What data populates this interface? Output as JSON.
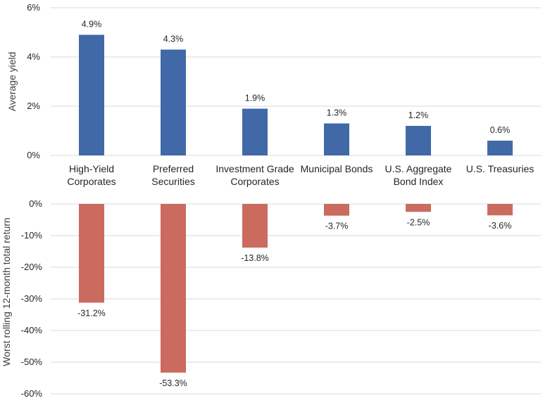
{
  "chart_data": [
    {
      "type": "bar",
      "ylabel": "Average yield",
      "ylim": [
        0,
        6
      ],
      "yticks": [
        "0%",
        "2%",
        "4%",
        "6%"
      ],
      "grid": true,
      "colors": {
        "bar": "#4169A8",
        "grid": "#D9D9D9"
      },
      "categories": [
        [
          "High-Yield",
          "Corporates"
        ],
        [
          "Preferred",
          "Securities"
        ],
        [
          "Investment Grade",
          "Corporates"
        ],
        [
          "Municipal Bonds"
        ],
        [
          "U.S. Aggregate",
          "Bond Index"
        ],
        [
          "U.S. Treasuries"
        ]
      ],
      "values": [
        4.9,
        4.3,
        1.9,
        1.3,
        1.2,
        0.6
      ],
      "data_labels": [
        "4.9%",
        "4.3%",
        "1.9%",
        "1.3%",
        "1.2%",
        "0.6%"
      ]
    },
    {
      "type": "bar",
      "ylabel": "Worst rolling 12-month total return",
      "ylim": [
        -60,
        0
      ],
      "yticks": [
        "0%",
        "-10%",
        "-20%",
        "-30%",
        "-40%",
        "-50%",
        "-60%"
      ],
      "grid": true,
      "colors": {
        "bar": "#CB6A5F",
        "grid": "#D9D9D9"
      },
      "values": [
        -31.2,
        -53.3,
        -13.8,
        -3.7,
        -2.5,
        -3.6
      ],
      "data_labels": [
        "-31.2%",
        "-53.3%",
        "-13.8%",
        "-3.7%",
        "-2.5%",
        "-3.6%"
      ]
    }
  ]
}
